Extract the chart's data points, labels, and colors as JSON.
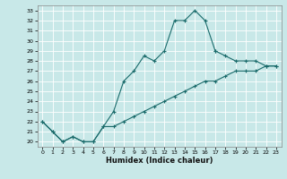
{
  "xlabel": "Humidex (Indice chaleur)",
  "bg_color": "#c8e8e8",
  "grid_color": "#aad8d8",
  "line_color": "#1a6b6b",
  "xlim": [
    -0.5,
    23.5
  ],
  "ylim": [
    19.5,
    33.5
  ],
  "xticks": [
    0,
    1,
    2,
    3,
    4,
    5,
    6,
    7,
    8,
    9,
    10,
    11,
    12,
    13,
    14,
    15,
    16,
    17,
    18,
    19,
    20,
    21,
    22,
    23
  ],
  "yticks": [
    20,
    21,
    22,
    23,
    24,
    25,
    26,
    27,
    28,
    29,
    30,
    31,
    32,
    33
  ],
  "curve1_x": [
    0,
    1,
    2,
    3,
    4,
    5,
    6,
    7,
    8,
    9,
    10,
    11,
    12,
    13,
    14,
    15,
    16,
    17
  ],
  "curve1_y": [
    22,
    21,
    20,
    20.5,
    20,
    20,
    21.5,
    23,
    26,
    27,
    28.5,
    28,
    29,
    32,
    32,
    33,
    32,
    29
  ],
  "curve2_x": [
    17,
    18,
    19,
    20,
    21,
    22,
    23
  ],
  "curve2_y": [
    29,
    28.5,
    28,
    28,
    28,
    27.5,
    27.5
  ],
  "curve3_x": [
    0,
    1,
    2,
    3,
    4,
    5,
    6,
    7,
    8,
    9,
    10,
    11,
    12,
    13,
    14,
    15,
    16,
    17,
    18,
    19,
    20,
    21,
    22,
    23
  ],
  "curve3_y": [
    22,
    21,
    20,
    20.5,
    20,
    20,
    21.5,
    21.5,
    22,
    22.5,
    23,
    23.5,
    24,
    24.5,
    25,
    25.5,
    26,
    26,
    26.5,
    27,
    27,
    27,
    27.5,
    27.5
  ]
}
